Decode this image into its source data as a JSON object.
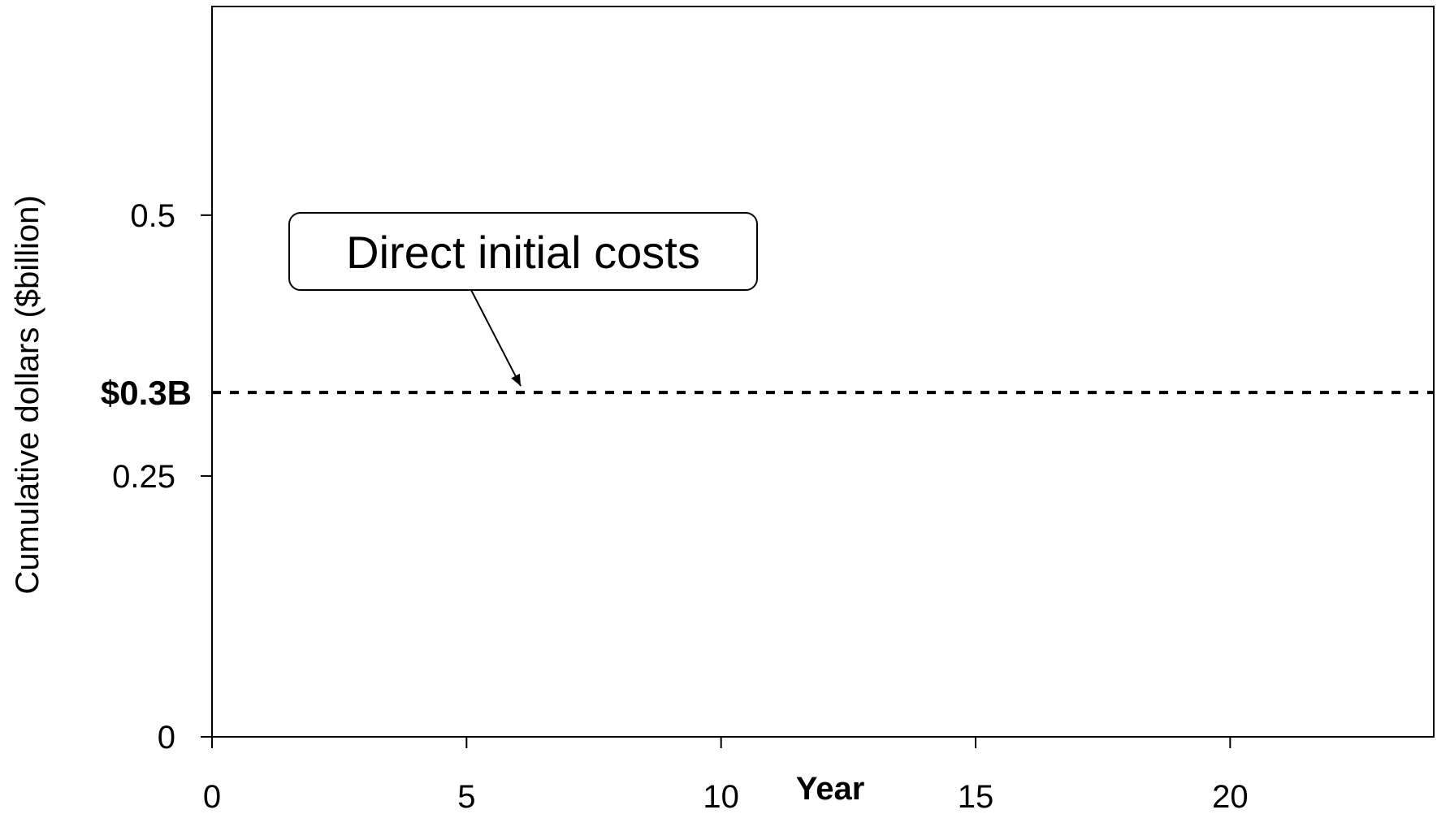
{
  "chart_data": {
    "type": "line",
    "title": "",
    "xlabel": "Year",
    "ylabel": "Cumulative dollars ($billion)",
    "xlim": [
      0,
      24
    ],
    "ylim": [
      0,
      0.7
    ],
    "x_ticks": [
      {
        "value": 0,
        "label": "0"
      },
      {
        "value": 5,
        "label": "5"
      },
      {
        "value": 10,
        "label": "10"
      },
      {
        "value": 15,
        "label": "15"
      },
      {
        "value": 20,
        "label": "20"
      }
    ],
    "y_ticks": [
      {
        "value": 0,
        "label": "0"
      },
      {
        "value": 0.25,
        "label": "0.25"
      },
      {
        "value": 0.5,
        "label": "0.5"
      }
    ],
    "grid": false,
    "series": [
      {
        "name": "",
        "style": "dotted",
        "color": "#000000",
        "x": [
          0,
          24
        ],
        "values": [
          0.33,
          0.33
        ]
      }
    ],
    "reference_label": {
      "value": 0.33,
      "text": "$0.3B"
    },
    "annotations": [
      {
        "text": "Direct initial costs",
        "x": 6,
        "y": 0.33
      }
    ]
  }
}
